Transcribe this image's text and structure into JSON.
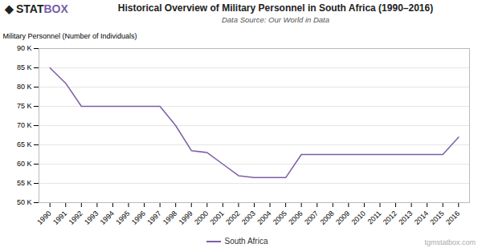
{
  "chart_data": {
    "type": "line",
    "title": "Historical Overview of Military Personnel in South Africa (1990–2016)",
    "subtitle": "Data Source: Our World in Data",
    "ylabel": "Military Personnel (Number of Individuals)",
    "x": [
      1990,
      1991,
      1992,
      1993,
      1994,
      1995,
      1996,
      1997,
      1998,
      1999,
      2000,
      2001,
      2002,
      2003,
      2004,
      2005,
      2006,
      2007,
      2008,
      2009,
      2010,
      2011,
      2012,
      2013,
      2014,
      2015,
      2016
    ],
    "series": [
      {
        "name": "South Africa",
        "color": "#7b5ea7",
        "values": [
          85000,
          81000,
          75000,
          75000,
          75000,
          75000,
          75000,
          75000,
          70000,
          63500,
          63000,
          60000,
          57000,
          56500,
          56500,
          56500,
          62500,
          62500,
          62500,
          62500,
          62500,
          62500,
          62500,
          62500,
          62500,
          62500,
          67000
        ]
      }
    ],
    "xlim": [
      1989.3,
      2016.7
    ],
    "xticks": [
      1990,
      1991,
      1992,
      1993,
      1994,
      1995,
      1996,
      1997,
      1998,
      1999,
      2000,
      2001,
      2002,
      2003,
      2004,
      2005,
      2006,
      2007,
      2008,
      2009,
      2010,
      2011,
      2012,
      2013,
      2014,
      2015,
      2016
    ],
    "ylim": [
      50000,
      90000
    ],
    "yticks": [
      {
        "value": 50000,
        "label": "50 K"
      },
      {
        "value": 55000,
        "label": "55 K"
      },
      {
        "value": 60000,
        "label": "60 K"
      },
      {
        "value": 65000,
        "label": "65 K"
      },
      {
        "value": 70000,
        "label": "70 K"
      },
      {
        "value": 75000,
        "label": "75 K"
      },
      {
        "value": 80000,
        "label": "80 K"
      },
      {
        "value": 85000,
        "label": "85 K"
      },
      {
        "value": 90000,
        "label": "90 K"
      }
    ],
    "grid": true,
    "legend": "bottom",
    "annotations": [
      {
        "text": "◆",
        "color": "#222222"
      },
      {
        "text": "STAT",
        "color": "#222222"
      },
      {
        "text": "BOX",
        "color": "#7b5ea7"
      },
      {
        "text": "tgmstatbox.com"
      }
    ]
  }
}
